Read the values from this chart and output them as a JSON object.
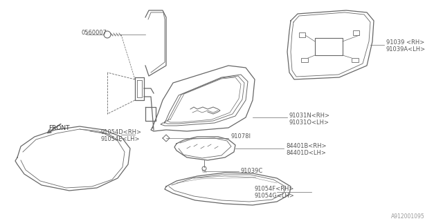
{
  "bg_color": "#ffffff",
  "line_color": "#666666",
  "text_color": "#555555",
  "fig_width": 6.4,
  "fig_height": 3.2,
  "dpi": 100,
  "watermark": "A912001095",
  "labels": {
    "bolt_top": "0560007",
    "mirror_glass_rh": "91039 <RH>",
    "mirror_glass_lh": "91039A<LH>",
    "seal_rh": "91031N<RH>",
    "seal_lh": "91031O<LH>",
    "bracket": "91078I",
    "turn_rh": "84401B<RH>",
    "turn_lh": "84401D<LH>",
    "bolt_bottom": "91039C",
    "cover_rh": "91054D<RH>",
    "cover_lh": "91054E<LH>",
    "lower_cover_rh": "91054F<RH>",
    "lower_cover_lh": "91054G<LH>",
    "front": "FRONT"
  }
}
